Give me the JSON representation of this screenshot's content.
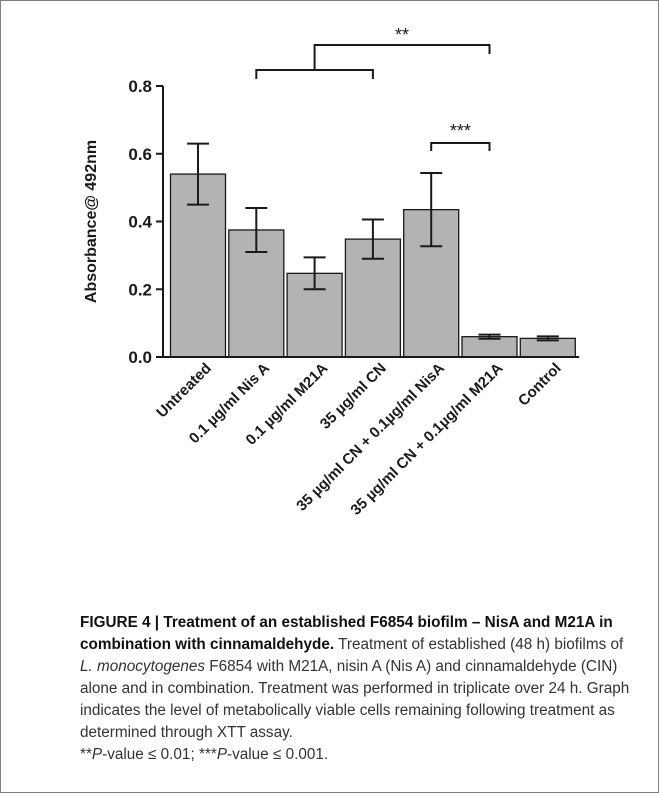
{
  "chart_data": {
    "type": "bar",
    "ylabel": "Absorbance@ 492nm",
    "xlabel": "",
    "ylim": [
      0,
      0.8
    ],
    "yticks": [
      "0.0",
      "0.2",
      "0.4",
      "0.6",
      "0.8"
    ],
    "ytick_values": [
      0,
      0.2,
      0.4,
      0.6,
      0.8
    ],
    "categories": [
      "Untreated",
      "0.1 µg/ml Nis A",
      "0.1 µg/ml M21A",
      "35 µg/ml CN",
      "35 µg/ml CN + 0.1µg/ml NisA",
      "35 µg/ml CN + 0.1µg/ml M21A",
      "Control"
    ],
    "values": [
      0.54,
      0.375,
      0.247,
      0.348,
      0.435,
      0.06,
      0.055
    ],
    "error": [
      0.09,
      0.065,
      0.047,
      0.058,
      0.108,
      0.006,
      0.006
    ],
    "bar_color": "#b3b3b3",
    "significance": [
      {
        "label": "**",
        "left_group": [
          1,
          3
        ],
        "right_bar": 5
      },
      {
        "label": "***",
        "from_bar": 4,
        "to_bar": 5
      }
    ]
  },
  "caption": {
    "title": "FIGURE 4 | Treatment of an established F6854 biofilm – NisA and M21A in combination with cinnamaldehyde.",
    "body_1": " Treatment of established (48 h) biofilms of ",
    "species": "L. monocytogenes",
    "body_2": " F6854 with M21A, nisin A (Nis A) and cinnamaldehyde (CIN) alone and in combination. Treatment was performed in triplicate over 24 h. Graph indicates the level of metabolically viable cells remaining following treatment as determined through XTT assay.",
    "stat_1_prefix": "**",
    "stat_1_p": "P",
    "stat_1_rest": "-value ≤ 0.01; ",
    "stat_2_prefix": "***",
    "stat_2_p": "P",
    "stat_2_rest": "-value ≤ 0.001."
  }
}
